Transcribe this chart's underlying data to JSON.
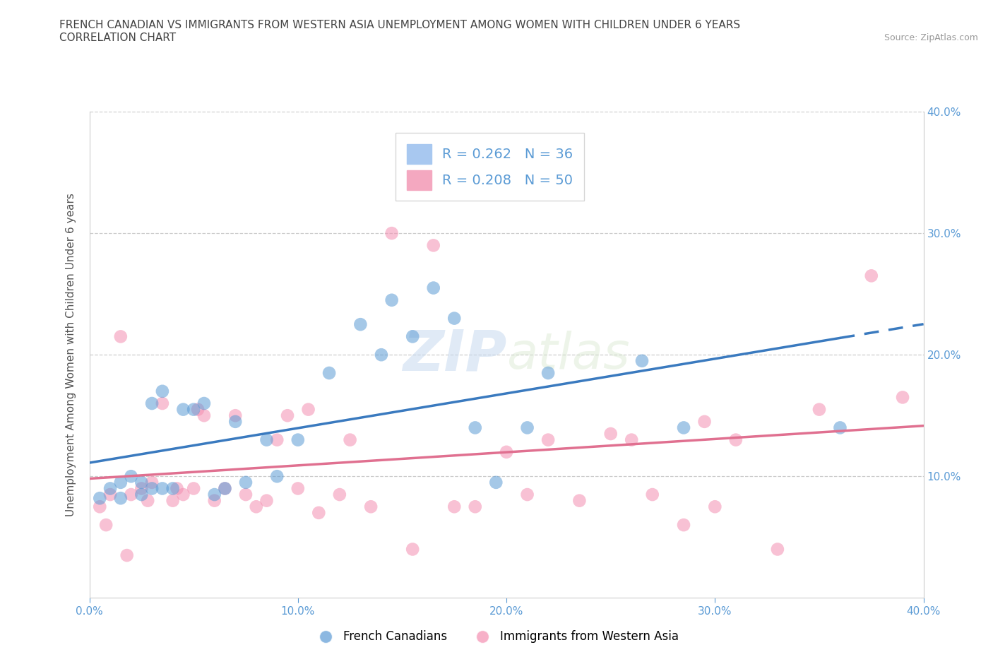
{
  "title_line1": "FRENCH CANADIAN VS IMMIGRANTS FROM WESTERN ASIA UNEMPLOYMENT AMONG WOMEN WITH CHILDREN UNDER 6 YEARS",
  "title_line2": "CORRELATION CHART",
  "source": "Source: ZipAtlas.com",
  "ylabel": "Unemployment Among Women with Children Under 6 years",
  "xlim": [
    0.0,
    0.4
  ],
  "ylim": [
    0.0,
    0.4
  ],
  "xtick_vals": [
    0.0,
    0.1,
    0.2,
    0.3,
    0.4
  ],
  "xtick_labels": [
    "0.0%",
    "10.0%",
    "20.0%",
    "30.0%",
    "40.0%"
  ],
  "right_ytick_vals": [
    0.1,
    0.2,
    0.3,
    0.4
  ],
  "right_ytick_labels": [
    "10.0%",
    "20.0%",
    "30.0%",
    "40.0%"
  ],
  "grid_ytick_vals": [
    0.1,
    0.2,
    0.3,
    0.4
  ],
  "legend1_label": "R = 0.262   N = 36",
  "legend2_label": "R = 0.208   N = 50",
  "legend1_color": "#a8c8f0",
  "legend2_color": "#f4a8c0",
  "blue_color": "#5b9bd5",
  "pink_color": "#f48fb1",
  "trend_blue": "#3a7abf",
  "trend_pink": "#e07090",
  "bottom_legend_blue": "French Canadians",
  "bottom_legend_pink": "Immigrants from Western Asia",
  "blue_scatter_x": [
    0.005,
    0.01,
    0.015,
    0.015,
    0.02,
    0.025,
    0.025,
    0.03,
    0.03,
    0.035,
    0.035,
    0.04,
    0.045,
    0.05,
    0.055,
    0.06,
    0.065,
    0.07,
    0.075,
    0.085,
    0.09,
    0.1,
    0.115,
    0.13,
    0.14,
    0.145,
    0.155,
    0.165,
    0.175,
    0.185,
    0.195,
    0.21,
    0.22,
    0.265,
    0.285,
    0.36
  ],
  "blue_scatter_y": [
    0.082,
    0.09,
    0.082,
    0.095,
    0.1,
    0.085,
    0.095,
    0.09,
    0.16,
    0.09,
    0.17,
    0.09,
    0.155,
    0.155,
    0.16,
    0.085,
    0.09,
    0.145,
    0.095,
    0.13,
    0.1,
    0.13,
    0.185,
    0.225,
    0.2,
    0.245,
    0.215,
    0.255,
    0.23,
    0.14,
    0.095,
    0.14,
    0.185,
    0.195,
    0.14,
    0.14
  ],
  "pink_scatter_x": [
    0.005,
    0.008,
    0.01,
    0.015,
    0.018,
    0.02,
    0.025,
    0.028,
    0.03,
    0.035,
    0.04,
    0.042,
    0.045,
    0.05,
    0.052,
    0.055,
    0.06,
    0.065,
    0.07,
    0.075,
    0.08,
    0.085,
    0.09,
    0.095,
    0.1,
    0.105,
    0.11,
    0.12,
    0.125,
    0.135,
    0.145,
    0.155,
    0.165,
    0.175,
    0.185,
    0.2,
    0.21,
    0.22,
    0.235,
    0.25,
    0.26,
    0.27,
    0.285,
    0.295,
    0.3,
    0.31,
    0.33,
    0.35,
    0.375,
    0.39
  ],
  "pink_scatter_y": [
    0.075,
    0.06,
    0.085,
    0.215,
    0.035,
    0.085,
    0.09,
    0.08,
    0.095,
    0.16,
    0.08,
    0.09,
    0.085,
    0.09,
    0.155,
    0.15,
    0.08,
    0.09,
    0.15,
    0.085,
    0.075,
    0.08,
    0.13,
    0.15,
    0.09,
    0.155,
    0.07,
    0.085,
    0.13,
    0.075,
    0.3,
    0.04,
    0.29,
    0.075,
    0.075,
    0.12,
    0.085,
    0.13,
    0.08,
    0.135,
    0.13,
    0.085,
    0.06,
    0.145,
    0.075,
    0.13,
    0.04,
    0.155,
    0.265,
    0.165
  ]
}
